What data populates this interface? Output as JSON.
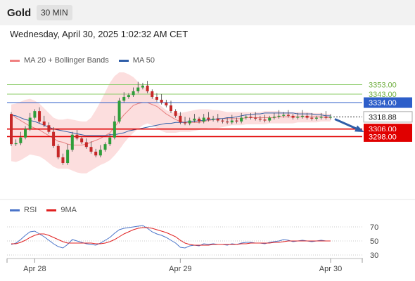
{
  "header": {
    "symbol": "Gold",
    "timeframe": "30 MIN"
  },
  "datetime": "Wednesday, April 30, 2025 1:02:32 AM CET",
  "colors": {
    "bollinger": "#f4a0a0",
    "ma20": "#e88080",
    "ma50": "#2f5ea8",
    "bull": "#2e9e3a",
    "bear": "#c62828",
    "rsi": "#4a74c9",
    "rsi_ma": "#e02020"
  },
  "legend_main": [
    {
      "label": "MA 20 + Bollinger Bands",
      "color": "#f08080"
    },
    {
      "label": "MA 50",
      "color": "#2f5ea8"
    }
  ],
  "legend_rsi": [
    {
      "label": "RSI",
      "color": "#4a74c9"
    },
    {
      "label": "9MA",
      "color": "#e02020"
    }
  ],
  "chart_data": [
    {
      "type": "candlestick",
      "ylim": [
        3238,
        3372
      ],
      "x_ticks": [
        {
          "label": "Apr 28",
          "index": 5
        },
        {
          "label": "Apr 29",
          "index": 36
        },
        {
          "label": "Apr 30",
          "index": 68
        }
      ],
      "levels": [
        {
          "label": "3353.00",
          "value": 3353,
          "style": "green-line"
        },
        {
          "label": "3343.00",
          "value": 3343,
          "style": "green-line"
        },
        {
          "label": "3334.00",
          "value": 3334,
          "style": "blue-box"
        },
        {
          "label": "3318.88",
          "value": 3318.88,
          "style": "current-price"
        },
        {
          "label": "3306.00",
          "value": 3306,
          "style": "red-box"
        },
        {
          "label": "3298.00",
          "value": 3298,
          "style": "red-box"
        }
      ],
      "forecast_arrow": {
        "from_index": 68,
        "from": 3318,
        "to_index": 74,
        "to": 3298
      },
      "close": [
        3290,
        3291,
        3297,
        3306,
        3318,
        3325,
        3314,
        3310,
        3303,
        3288,
        3276,
        3270,
        3284,
        3300,
        3296,
        3292,
        3287,
        3282,
        3278,
        3284,
        3290,
        3297,
        3314,
        3336,
        3340,
        3342,
        3346,
        3350,
        3352,
        3346,
        3340,
        3337,
        3334,
        3331,
        3325,
        3320,
        3313,
        3312,
        3315,
        3317,
        3314,
        3318,
        3316,
        3317,
        3315,
        3314,
        3313,
        3315,
        3314,
        3318,
        3319,
        3318,
        3317,
        3316,
        3315,
        3318,
        3319,
        3320,
        3321,
        3320,
        3318,
        3319,
        3320,
        3318,
        3317,
        3318,
        3319,
        3318,
        3318.88
      ],
      "ma20": [
        3322,
        3318,
        3315,
        3312,
        3309,
        3307,
        3305,
        3302,
        3299,
        3296,
        3293,
        3292,
        3290,
        3289,
        3289,
        3289,
        3290,
        3292,
        3294,
        3296,
        3299,
        3302,
        3308,
        3315,
        3321,
        3326,
        3331,
        3333,
        3334,
        3334,
        3332,
        3330,
        3326,
        3322,
        3319,
        3316,
        3314,
        3313,
        3313,
        3313,
        3313,
        3314,
        3315,
        3316,
        3317,
        3317,
        3317,
        3317,
        3317,
        3317,
        3318,
        3318,
        3318,
        3318,
        3318,
        3318,
        3318,
        3319,
        3319,
        3319,
        3319,
        3319,
        3319,
        3319,
        3319,
        3319,
        3319,
        3318,
        3318
      ],
      "bb_upper": [
        3332,
        3333,
        3335,
        3337,
        3338,
        3336,
        3333,
        3328,
        3323,
        3318,
        3316,
        3316,
        3317,
        3316,
        3315,
        3314,
        3314,
        3318,
        3326,
        3335,
        3345,
        3355,
        3362,
        3366,
        3366,
        3364,
        3361,
        3356,
        3352,
        3348,
        3342,
        3335,
        3330,
        3326,
        3324,
        3323,
        3323,
        3324,
        3325,
        3326,
        3327,
        3327,
        3327,
        3326,
        3326,
        3325,
        3324,
        3324,
        3324,
        3324,
        3324,
        3324,
        3324,
        3324,
        3325,
        3325,
        3325,
        3325,
        3324,
        3324,
        3324,
        3324,
        3324,
        3324,
        3323,
        3323,
        3323,
        3322,
        3322
      ],
      "bb_lower": [
        3272,
        3271,
        3273,
        3276,
        3279,
        3278,
        3277,
        3274,
        3270,
        3266,
        3264,
        3264,
        3264,
        3262,
        3260,
        3259,
        3259,
        3262,
        3265,
        3268,
        3270,
        3273,
        3278,
        3284,
        3291,
        3297,
        3302,
        3306,
        3310,
        3312,
        3310,
        3307,
        3304,
        3302,
        3302,
        3302,
        3303,
        3303,
        3303,
        3304,
        3305,
        3306,
        3307,
        3307,
        3307,
        3308,
        3309,
        3310,
        3310,
        3310,
        3311,
        3311,
        3311,
        3311,
        3311,
        3312,
        3312,
        3312,
        3312,
        3312,
        3312,
        3313,
        3313,
        3313,
        3313,
        3313,
        3314,
        3314,
        3314
      ],
      "ma50": [
        3321,
        3320,
        3318,
        3316,
        3315,
        3314,
        3312,
        3310,
        3308,
        3306,
        3305,
        3304,
        3303,
        3302,
        3301,
        3300,
        3299,
        3299,
        3299,
        3299,
        3299,
        3300,
        3300,
        3301,
        3302,
        3304,
        3305,
        3306,
        3307,
        3308,
        3309,
        3310,
        3311,
        3312,
        3312,
        3313,
        3313,
        3313,
        3314,
        3314,
        3315,
        3315,
        3316,
        3316,
        3317,
        3317,
        3318,
        3318,
        3319,
        3320,
        3321,
        3321,
        3322,
        3322,
        3323,
        3323,
        3323,
        3323,
        3323,
        3323,
        3323,
        3322,
        3322,
        3322,
        3322,
        3321,
        3321,
        3320,
        3320
      ]
    },
    {
      "type": "line",
      "title": "RSI",
      "ylim": [
        20,
        80
      ],
      "y_ticks": [
        {
          "label": "70",
          "value": 70
        },
        {
          "label": "50",
          "value": 50
        },
        {
          "label": "30",
          "value": 30
        }
      ],
      "rsi": [
        45,
        47,
        52,
        58,
        63,
        64,
        60,
        56,
        51,
        46,
        42,
        40,
        45,
        52,
        50,
        48,
        46,
        45,
        44,
        47,
        51,
        55,
        61,
        66,
        68,
        69,
        70,
        71,
        72,
        68,
        63,
        60,
        58,
        55,
        51,
        47,
        41,
        40,
        43,
        44,
        43,
        46,
        45,
        46,
        45,
        45,
        44,
        46,
        45,
        47,
        48,
        48,
        47,
        47,
        46,
        48,
        49,
        50,
        52,
        51,
        49,
        50,
        51,
        50,
        49,
        50,
        51,
        50,
        50
      ],
      "rsi_ma": [
        46,
        46,
        48,
        51,
        55,
        58,
        60,
        60,
        58,
        55,
        52,
        49,
        47,
        47,
        47,
        47,
        47,
        47,
        46,
        46,
        47,
        49,
        52,
        56,
        60,
        63,
        66,
        68,
        69,
        69,
        68,
        66,
        64,
        62,
        59,
        56,
        51,
        47,
        45,
        44,
        44,
        44,
        44,
        45,
        45,
        45,
        45,
        45,
        45,
        46,
        46,
        47,
        47,
        47,
        47,
        47,
        48,
        48,
        49,
        50,
        50,
        50,
        50,
        50,
        50,
        50,
        50,
        50,
        50
      ]
    }
  ]
}
